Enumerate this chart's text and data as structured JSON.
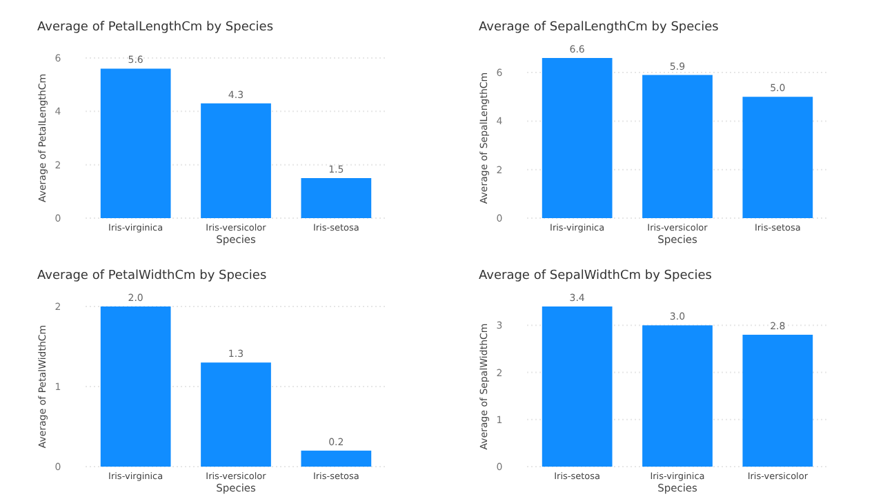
{
  "chart_data": [
    {
      "type": "bar",
      "title": "Average of PetalLengthCm by Species",
      "xlabel": "Species",
      "ylabel": "Average of PetalLengthCm",
      "categories": [
        "Iris-virginica",
        "Iris-versicolor",
        "Iris-setosa"
      ],
      "values": [
        5.6,
        4.3,
        1.5
      ],
      "value_labels": [
        "5.6",
        "4.3",
        "1.5"
      ],
      "color": "#118dff",
      "ylim": [
        0,
        6
      ],
      "yticks": [
        0,
        2,
        4,
        6
      ],
      "grid": "y"
    },
    {
      "type": "bar",
      "title": "Average of SepalLengthCm by Species",
      "xlabel": "Species",
      "ylabel": "Average of SepalLengthCm",
      "categories": [
        "Iris-virginica",
        "Iris-versicolor",
        "Iris-setosa"
      ],
      "values": [
        6.6,
        5.9,
        5
      ],
      "value_labels": [
        "6.6",
        "5.9",
        "5.0"
      ],
      "color": "#118dff",
      "ylim": [
        0,
        6.6
      ],
      "yticks": [
        0,
        2,
        4,
        6
      ],
      "grid": "y"
    },
    {
      "type": "bar",
      "title": "Average of PetalWidthCm by Species",
      "xlabel": "Species",
      "ylabel": "Average of PetalWidthCm",
      "categories": [
        "Iris-virginica",
        "Iris-versicolor",
        "Iris-setosa"
      ],
      "values": [
        2,
        1.3,
        0.2
      ],
      "value_labels": [
        "2.0",
        "1.3",
        "0.2"
      ],
      "color": "#118dff",
      "ylim": [
        0,
        2
      ],
      "yticks": [
        0,
        1,
        2
      ],
      "grid": "y"
    },
    {
      "type": "bar",
      "title": "Average of SepalWidthCm by Species",
      "xlabel": "Species",
      "ylabel": "Average of SepalWidthCm",
      "categories": [
        "Iris-setosa",
        "Iris-virginica",
        "Iris-versicolor"
      ],
      "values": [
        3.4,
        3,
        2.8
      ],
      "value_labels": [
        "3.4",
        "3.0",
        "2.8"
      ],
      "color": "#118dff",
      "ylim": [
        0,
        3.4
      ],
      "yticks": [
        0,
        1,
        2,
        3
      ],
      "grid": "y"
    }
  ]
}
